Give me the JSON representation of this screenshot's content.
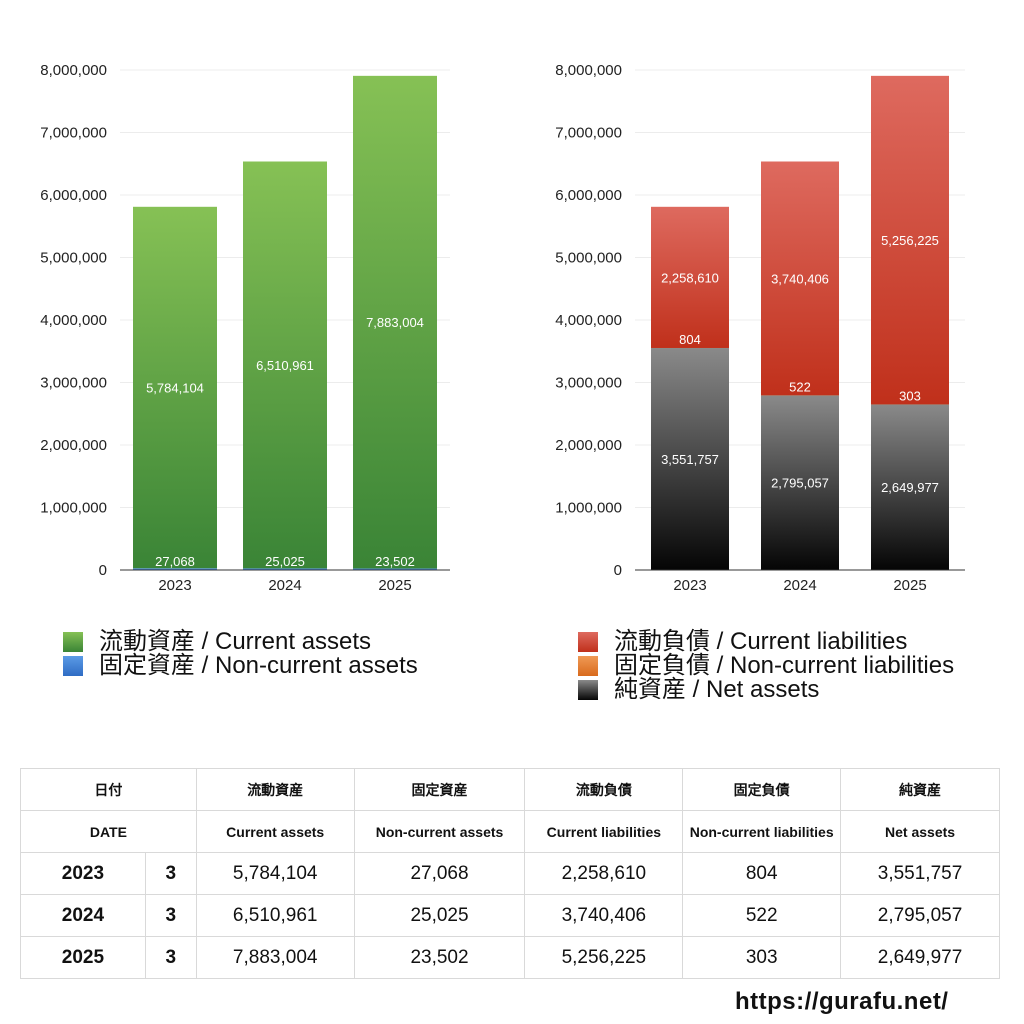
{
  "chart_data": [
    {
      "type": "bar",
      "stacked": true,
      "categories": [
        "2023",
        "2024",
        "2025"
      ],
      "ylim": [
        0,
        8000000
      ],
      "yticks": [
        0,
        1000000,
        2000000,
        3000000,
        4000000,
        5000000,
        6000000,
        7000000,
        8000000
      ],
      "ytick_labels": [
        "0",
        "1,000,000",
        "2,000,000",
        "3,000,000",
        "4,000,000",
        "5,000,000",
        "6,000,000",
        "7,000,000",
        "8,000,000"
      ],
      "series": [
        {
          "name": "固定資産 / Non-current assets",
          "color": "#3f7fd6",
          "values": [
            27068,
            25025,
            23502
          ],
          "labels": [
            "27,068",
            "25,025",
            "23,502"
          ]
        },
        {
          "name": "流動資産 / Current assets",
          "color": "#55a33f",
          "values": [
            5784104,
            6510961,
            7883004
          ],
          "labels": [
            "5,784,104",
            "6,510,961",
            "7,883,004"
          ]
        }
      ]
    },
    {
      "type": "bar",
      "stacked": true,
      "categories": [
        "2023",
        "2024",
        "2025"
      ],
      "ylim": [
        0,
        8000000
      ],
      "yticks": [
        0,
        1000000,
        2000000,
        3000000,
        4000000,
        5000000,
        6000000,
        7000000,
        8000000
      ],
      "ytick_labels": [
        "0",
        "1,000,000",
        "2,000,000",
        "3,000,000",
        "4,000,000",
        "5,000,000",
        "6,000,000",
        "7,000,000",
        "8,000,000"
      ],
      "series": [
        {
          "name": "純資産 / Net assets",
          "color": "#333333",
          "values": [
            3551757,
            2795057,
            2649977
          ],
          "labels": [
            "3,551,757",
            "2,795,057",
            "2,649,977"
          ]
        },
        {
          "name": "固定負債 / Non-current liabilities",
          "color": "#e07a2e",
          "values": [
            804,
            522,
            303
          ],
          "labels": [
            "804",
            "522",
            "303"
          ]
        },
        {
          "name": "流動負債 / Current liabilities",
          "color": "#cc3b2a",
          "values": [
            2258610,
            3740406,
            5256225
          ],
          "labels": [
            "2,258,610",
            "3,740,406",
            "5,256,225"
          ]
        }
      ]
    }
  ],
  "legend_left": [
    {
      "label": "流動資産 / Current assets",
      "color": "#55a33f"
    },
    {
      "label": "固定資産 / Non-current assets",
      "color": "#3f7fd6"
    }
  ],
  "legend_right": [
    {
      "label": "流動負債 / Current liabilities",
      "color": "#cc3b2a"
    },
    {
      "label": "固定負債 / Non-current liabilities",
      "color": "#e07a2e"
    },
    {
      "label": "純資産 / Net assets",
      "color": "#222222"
    }
  ],
  "table": {
    "header_jp": [
      "日付",
      "流動資産",
      "固定資産",
      "流動負債",
      "固定負債",
      "純資産"
    ],
    "header_en": [
      "DATE",
      "Current assets",
      "Non-current assets",
      "Current liabilities",
      "Non-current liabilities",
      "Net assets"
    ],
    "rows": [
      {
        "year": "2023",
        "month": "3",
        "cells": [
          "5,784,104",
          "27,068",
          "2,258,610",
          "804",
          "3,551,757"
        ]
      },
      {
        "year": "2024",
        "month": "3",
        "cells": [
          "6,510,961",
          "25,025",
          "3,740,406",
          "522",
          "2,795,057"
        ]
      },
      {
        "year": "2025",
        "month": "3",
        "cells": [
          "7,883,004",
          "23,502",
          "5,256,225",
          "303",
          "2,649,977"
        ]
      }
    ]
  },
  "site": "https://gurafu.net/"
}
